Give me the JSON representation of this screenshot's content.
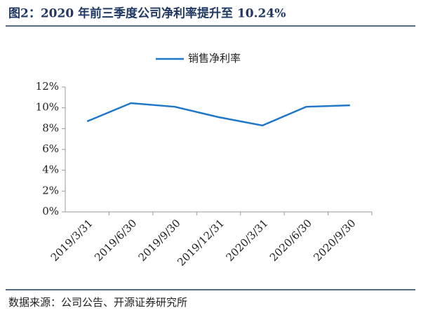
{
  "chart_data": {
    "type": "line",
    "title": "图2：2020 年前三季度公司净利率提升至 10.24%",
    "source": "数据来源：公司公告、开源证券研究所",
    "categories": [
      "2019/3/31",
      "2019/6/30",
      "2019/9/30",
      "2019/12/31",
      "2020/3/31",
      "2020/6/30",
      "2020/9/30"
    ],
    "series": [
      {
        "name": "销售净利率",
        "color": "#1f77c8",
        "values": [
          8.7,
          10.45,
          10.1,
          9.1,
          8.3,
          10.1,
          10.24
        ]
      }
    ],
    "ylim": [
      0,
      12
    ],
    "yticks": [
      {
        "value": 0,
        "label": "0%"
      },
      {
        "value": 2,
        "label": "2%"
      },
      {
        "value": 4,
        "label": "4%"
      },
      {
        "value": 6,
        "label": "6%"
      },
      {
        "value": 8,
        "label": "8%"
      },
      {
        "value": 10,
        "label": "10%"
      },
      {
        "value": 12,
        "label": "12%"
      }
    ],
    "legend": "top"
  }
}
